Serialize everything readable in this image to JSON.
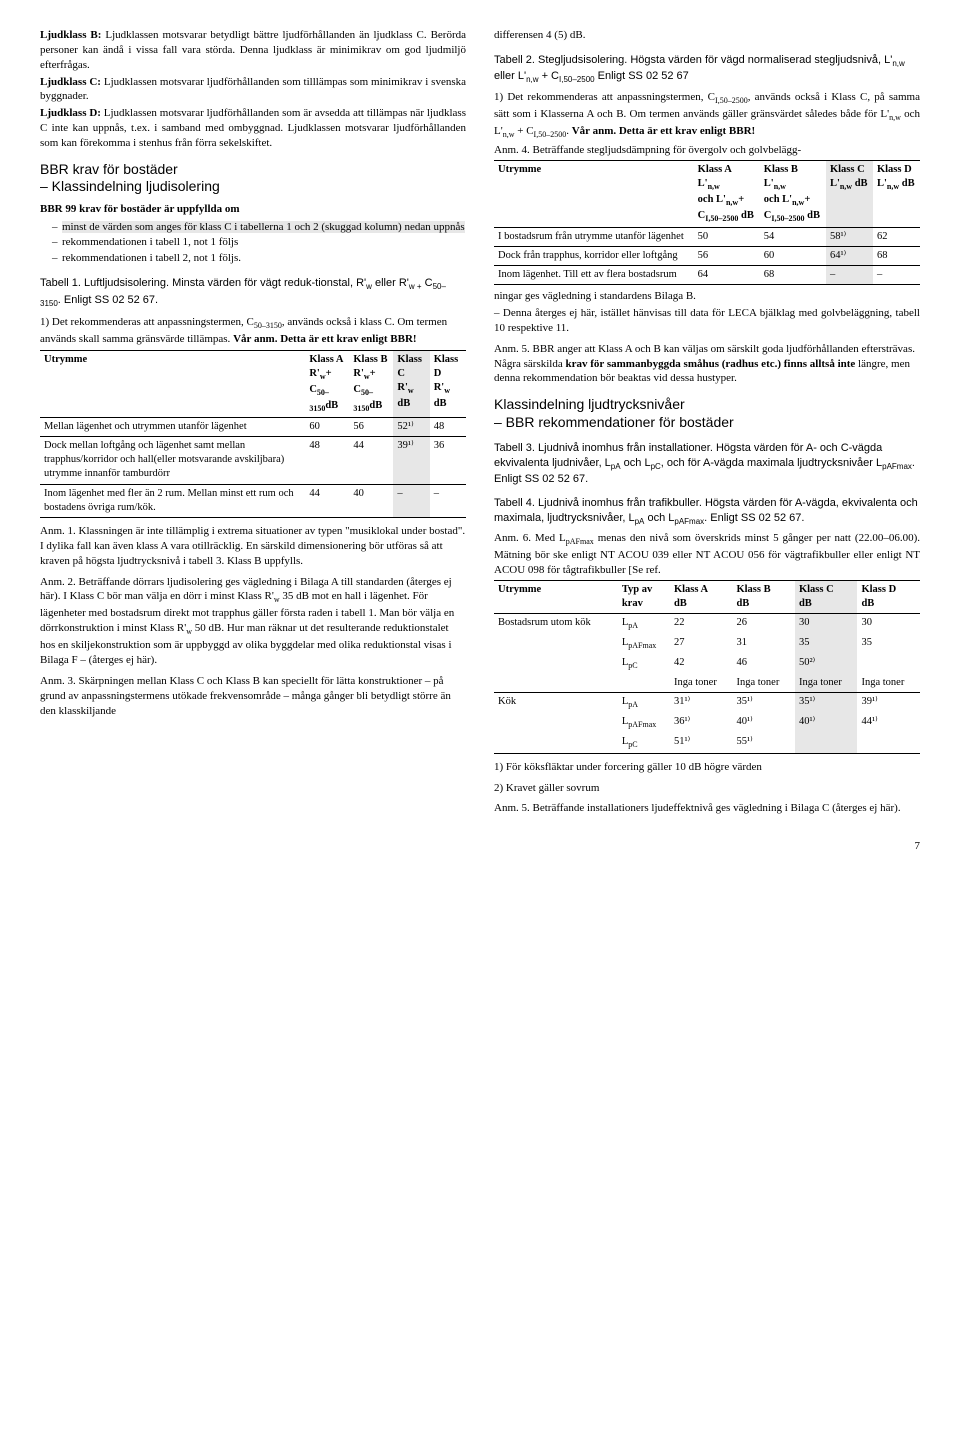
{
  "left": {
    "ljudklass_b": "Ljudklass B: Ljudklassen motsvarar betydligt bättre ljudförhållanden än ljudklass C. Berörda personer kan ändå i vissa fall vara störda. Denna ljudklass är minimikrav om god ljudmiljö efterfrågas.",
    "ljudklass_c": "Ljudklass C: Ljudklassen motsvarar ljudförhållanden som tilllämpas som minimikrav i svenska byggnader.",
    "ljudklass_d": "Ljudklass D: Ljudklassen motsvarar ljudförhållanden som är avsedda att tillämpas när ljudklass C inte kan uppnås, t.ex. i samband med ombyggnad. Ljudklassen motsvarar ljudförhållanden som kan förekomma i stenhus från förra sekelskiftet.",
    "sec_bbr": "BBR krav för bostäder\n– Klassindelning ljudisolering",
    "bbr99_title": "BBR 99 krav för bostäder är uppfyllda om",
    "bbr99_items": [
      "minst de värden som anges för klass C i tabellerna 1 och 2 (skuggad kolumn) nedan uppnås",
      "rekommendationen i tabell 1, not 1 följs",
      "rekommendationen i tabell 2, not 1 följs."
    ],
    "tab1_caption": "Tabell 1. Luftljudsisolering. Minsta värden för vägt reduk-tionstal, R'w eller R'w + C50–3150. Enligt SS 02 52 67.",
    "t1_note1": "1) Det rekommenderas att anpassningstermen, C50–3150, används också i klass C. Om termen används skall samma gränsvärde tillämpas. Vår anm. Detta är ett krav enligt BBR!",
    "t1_head": {
      "utrymme": "Utrymme",
      "a": "Klass A",
      "a2": "R'w+",
      "a3": "C50–3150dB",
      "b": "Klass B",
      "b2": "R'w+",
      "b3": "C50–3150dB",
      "c": "Klass C",
      "c2": "R'w",
      "c3": "dB",
      "d": "Klass D",
      "d2": "R'w",
      "d3": "dB"
    },
    "t1_rows": [
      {
        "u": "Mellan lägenhet och utrymmen utanför lägenhet",
        "a": "60",
        "b": "56",
        "c": "52¹⁾",
        "d": "48"
      },
      {
        "u": "Dock mellan loftgång och lägenhet samt mellan trapphus/korridor och hall(eller motsvarande avskiljbara) utrymme innanför tamburdörr",
        "a": "48",
        "b": "44",
        "c": "39¹⁾",
        "d": "36"
      },
      {
        "u": "Inom lägenhet med fler än 2 rum. Mellan minst ett rum och bostadens övriga rum/kök.",
        "a": "44",
        "b": "40",
        "c": "–",
        "d": "–"
      }
    ],
    "anm1": "Anm. 1. Klassningen är inte tillämplig i extrema situationer av typen \"musiklokal under bostad\". I dylika fall kan även klass A vara otillräcklig. En särskild dimensionering bör utföras så att kraven på högsta ljudtrycksnivå i tabell 3. Klass B uppfylls.",
    "anm2": "Anm. 2. Beträffande dörrars ljudisolering ges vägledning i Bilaga A till standarden (återges ej här). I Klass C bör man välja en dörr i minst Klass R'w 35 dB mot en hall i lägenhet. För lägenheter med bostadsrum direkt mot trapphus gäller första raden i tabell 1. Man bör välja en dörrkonstruktion i minst Klass R'w 50 dB. Hur man räknar ut det resulterande reduktionstalet hos en skiljekonstruktion som är uppbyggd av olika byggdelar med olika reduktionstal visas i Bilaga F – (återges ej här).",
    "anm3": "Anm. 3. Skärpningen mellan Klass C och Klass B kan speciellt för lätta konstruktioner – på grund av anpassningstermens utökade frekvensområde – många gånger bli betydligt större än den klasskiljande"
  },
  "right": {
    "diff": "differensen 4 (5) dB.",
    "tab2_caption": "Tabell 2. Stegljudsisolering. Högsta värden för vägd normaliserad stegljudsnivå, L'n,w eller L'n,w + CI,50–2500 Enligt SS 02 52 67",
    "t2_note1a": "1) Det rekommenderas att anpassningstermen, CI,50–2500, används också i Klass C, på samma sätt som i Klasserna A och B. Om termen används gäller gränsvärdet således både för L'n,w och L'n,w + CI,50–2500. Vår anm. Detta är ett krav enligt BBR!",
    "t2_note_anm4": "Anm. 4. Beträffande stegljudsdämpning för övergolv och golvbelägg-",
    "t2_head": {
      "utrymme": "Utrymme",
      "a": "Klass A",
      "a2": "L'n,w",
      "a3": "och L'n,w+",
      "a4": "CI,50–2500 dB",
      "b": "Klass B",
      "b2": "L'n,w",
      "b3": "och L'n,w+",
      "b4": "CI,50–2500 dB",
      "c": "Klass C",
      "c2": "L'n,w dB",
      "d": "Klass D",
      "d2": "L'n,w dB"
    },
    "t2_rows": [
      {
        "u": "I bostadsrum från utrymme utanför lägenhet",
        "a": "50",
        "b": "54",
        "c": "58¹⁾",
        "d": "62"
      },
      {
        "u": "Dock från trapphus, korridor eller loftgång",
        "a": "56",
        "b": "60",
        "c": "64¹⁾",
        "d": "68"
      },
      {
        "u": "Inom lägenhet. Till ett av flera bostadsrum",
        "a": "64",
        "b": "68",
        "c": "–",
        "d": "–"
      }
    ],
    "post_t2_a": "ningar ges vägledning i standardens Bilaga B.",
    "post_t2_b": "– Denna återges ej här, istället hänvisas till data för LECA bjälklag med golvbeläggning, tabell 10 respektive 11.",
    "anm5": "Anm. 5. BBR anger att Klass A och B kan väljas om särskilt goda ljudförhållanden eftersträvas. Några särskilda krav för sammanbyggda småhus (radhus etc.) finns alltså inte längre, men denna rekommendation bör beaktas vid dessa hustyper.",
    "sec_klass": "Klassindelning ljudtrycksnivåer\n– BBR rekommendationer för bostäder",
    "tab3_caption": "Tabell 3. Ljudnivå inomhus från installationer. Högsta värden för A- och C-vägda ekvivalenta ljudnivåer, LpA och LpC, och för A-vägda maximala ljudtrycksnivåer LpAFmax.\nEnligt SS 02 52 67.",
    "tab4_caption": "Tabell 4. Ljudnivå inomhus från trafikbuller. Högsta värden för A-vägda, ekvivalenta och maximala, ljudtrycksnivåer, LpA och LpAFmax. Enligt SS 02 52 67.",
    "anm6": "Anm. 6. Med LpAFmax menas den nivå som överskrids minst 5 gånger per natt (22.00–06.00). Mätning bör ske enligt NT ACOU 039 eller NT ACOU 056 för vägtrafikbuller eller enligt NT ACOU 098 för tågtrafikbuller [Se ref.",
    "t3_head": {
      "utrymme": "Utrymme",
      "typ": "Typ av krav",
      "a": "Klass A dB",
      "b": "Klass B dB",
      "c": "Klass C dB",
      "d": "Klass D dB"
    },
    "t3_rows": [
      {
        "u": "Bostadsrum utom kök",
        "typ": "LpA",
        "a": "22",
        "b": "26",
        "c": "30",
        "d": "30"
      },
      {
        "u": "",
        "typ": "LpAFmax",
        "a": "27",
        "b": "31",
        "c": "35",
        "d": "35"
      },
      {
        "u": "",
        "typ": "LpC",
        "a": "42",
        "b": "46",
        "c": "50²⁾",
        "d": ""
      },
      {
        "u": "",
        "typ": "",
        "a": "Inga toner",
        "b": "Inga toner",
        "c": "Inga toner",
        "d": "Inga toner"
      },
      {
        "u": "Kök",
        "typ": "LpA",
        "a": "31¹⁾",
        "b": "35¹⁾",
        "c": "35¹⁾",
        "d": "39¹⁾"
      },
      {
        "u": "",
        "typ": "LpAFmax",
        "a": "36¹⁾",
        "b": "40¹⁾",
        "c": "40¹⁾",
        "d": "44¹⁾"
      },
      {
        "u": "",
        "typ": "LpC",
        "a": "51¹⁾",
        "b": "55¹⁾",
        "c": "",
        "d": ""
      }
    ],
    "t3_foot1": "1)  För köksfläktar under forcering gäller 10 dB högre värden",
    "t3_foot2": "2)  Kravet gäller sovrum",
    "t3_anm5": "Anm. 5. Beträffande installationers ljudeffektnivå ges vägledning i Bilaga C (återges ej här).",
    "pagenum": "7"
  }
}
